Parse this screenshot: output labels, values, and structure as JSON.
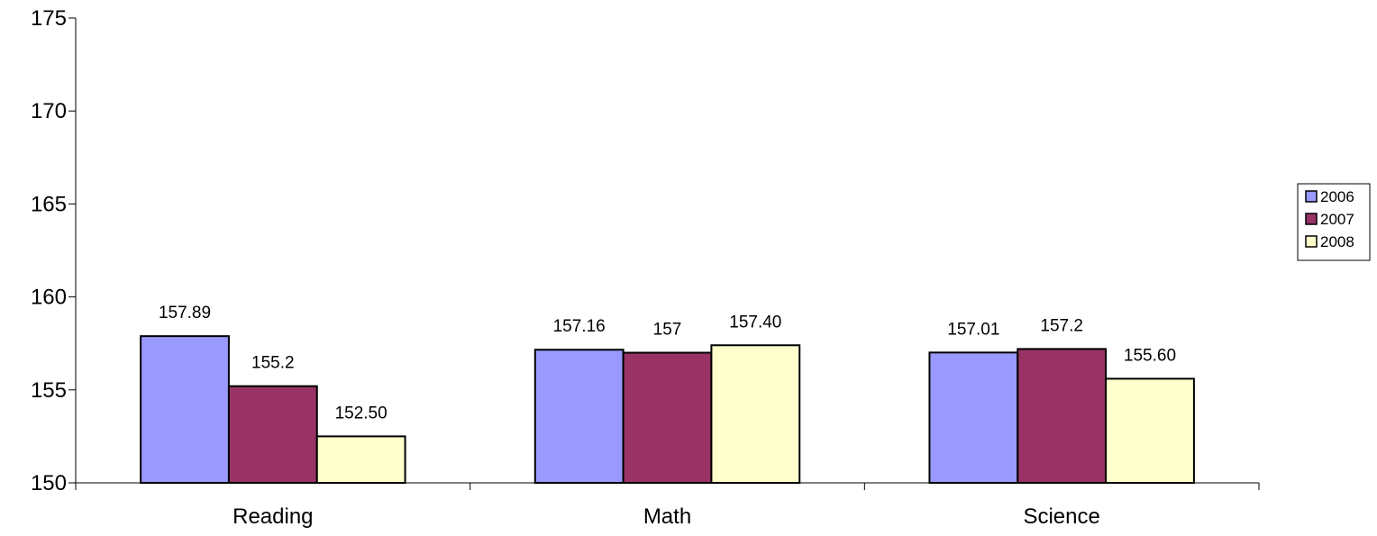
{
  "chart_data": {
    "type": "bar",
    "categories": [
      "Reading",
      "Math",
      "Science"
    ],
    "series": [
      {
        "name": "2006",
        "values": [
          157.89,
          157.16,
          157.01
        ],
        "labels": [
          "157.89",
          "157.16",
          "157.01"
        ],
        "color": "#9999FF"
      },
      {
        "name": "2007",
        "values": [
          155.2,
          157,
          157.2
        ],
        "labels": [
          "155.2",
          "157",
          "157.2"
        ],
        "color": "#993366"
      },
      {
        "name": "2008",
        "values": [
          152.5,
          157.4,
          155.6
        ],
        "labels": [
          "152.50",
          "157.40",
          "155.60"
        ],
        "color": "#FFFFCC"
      }
    ],
    "ylim": [
      150,
      175
    ],
    "yticks": [
      "150",
      "155",
      "160",
      "165",
      "170",
      "175"
    ],
    "grid": false,
    "legend_position": "right"
  }
}
